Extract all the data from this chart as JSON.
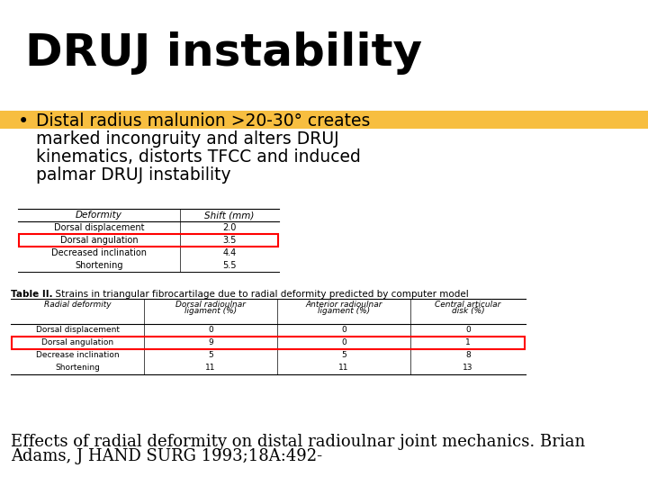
{
  "title": "DRUJ instability",
  "bullet_line1": "Distal radius malunion >20-30° creates",
  "bullet_line2": "marked incongruity and alters DRUJ",
  "bullet_line3": "kinematics, distorts TFCC and induced",
  "bullet_line4": "palmar DRUJ instability",
  "highlight_color": "#F5A800",
  "table1_headers": [
    "Deformity",
    "Shift (mm)"
  ],
  "table1_rows": [
    [
      "Dorsal displacement",
      "2.0"
    ],
    [
      "Dorsal angulation",
      "3.5"
    ],
    [
      "Decreased inclination",
      "4.4"
    ],
    [
      "Shortening",
      "5.5"
    ]
  ],
  "table1_highlighted_row": 1,
  "table2_caption_bold": "Table II.",
  "table2_caption_normal": "  Strains in triangular fibrocartilage due to radial deformity predicted by computer model",
  "table2_headers": [
    "Radial deformity",
    "Dorsal radioulnar\nligament (%)",
    "Anterior radioulnar\nligament (%)",
    "Central articular\ndisk (%)"
  ],
  "table2_rows": [
    [
      "Dorsal displacement",
      "0",
      "0",
      "0"
    ],
    [
      "Dorsal angulation",
      "9",
      "0",
      "1"
    ],
    [
      "Decrease inclination",
      "5",
      "5",
      "8"
    ],
    [
      "Shortening",
      "11",
      "11",
      "13"
    ]
  ],
  "table2_highlighted_row": 1,
  "footer_line1": "Effects of radial deformity on distal radioulnar joint mechanics. Brian",
  "footer_line2": "Adams, J HAND SURG 1993;18A:492-",
  "bg_color": "#ffffff"
}
